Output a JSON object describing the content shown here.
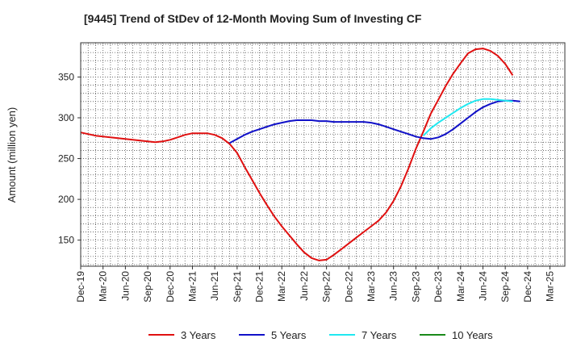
{
  "chart_data": {
    "type": "line",
    "title": "[9445]  Trend of StDev of 12-Month Moving Sum of Investing CF",
    "xlabel": "",
    "ylabel": "Amount (million yen)",
    "ylim": [
      118,
      392
    ],
    "yticks": [
      150,
      200,
      250,
      300,
      350
    ],
    "xticks": [
      "Dec-19",
      "Mar-20",
      "Jun-20",
      "Sep-20",
      "Dec-20",
      "Mar-21",
      "Jun-21",
      "Sep-21",
      "Dec-21",
      "Mar-22",
      "Jun-22",
      "Sep-22",
      "Dec-22",
      "Mar-23",
      "Jun-23",
      "Sep-23",
      "Dec-23",
      "Mar-24",
      "Jun-24",
      "Sep-24",
      "Dec-24",
      "Mar-25"
    ],
    "grid": true,
    "legend_position": "bottom",
    "series": [
      {
        "name": "3 Years",
        "color": "#e01010",
        "points": [
          [
            "Dec-19",
            282
          ],
          [
            "Jan-20",
            280
          ],
          [
            "Feb-20",
            278
          ],
          [
            "Mar-20",
            277
          ],
          [
            "Apr-20",
            276
          ],
          [
            "May-20",
            275
          ],
          [
            "Jun-20",
            274
          ],
          [
            "Jul-20",
            273
          ],
          [
            "Aug-20",
            272
          ],
          [
            "Sep-20",
            271
          ],
          [
            "Oct-20",
            270
          ],
          [
            "Nov-20",
            271
          ],
          [
            "Dec-20",
            273
          ],
          [
            "Jan-21",
            276
          ],
          [
            "Feb-21",
            279
          ],
          [
            "Mar-21",
            281
          ],
          [
            "Apr-21",
            281
          ],
          [
            "May-21",
            281
          ],
          [
            "Jun-21",
            279
          ],
          [
            "Jul-21",
            275
          ],
          [
            "Aug-21",
            268
          ],
          [
            "Sep-21",
            257
          ],
          [
            "Oct-21",
            240
          ],
          [
            "Nov-21",
            224
          ],
          [
            "Dec-21",
            208
          ],
          [
            "Jan-22",
            193
          ],
          [
            "Feb-22",
            179
          ],
          [
            "Mar-22",
            167
          ],
          [
            "Apr-22",
            156
          ],
          [
            "May-22",
            145
          ],
          [
            "Jun-22",
            135
          ],
          [
            "Jul-22",
            128
          ],
          [
            "Aug-22",
            125
          ],
          [
            "Sep-22",
            126
          ],
          [
            "Oct-22",
            132
          ],
          [
            "Nov-22",
            139
          ],
          [
            "Dec-22",
            146
          ],
          [
            "Jan-23",
            153
          ],
          [
            "Feb-23",
            160
          ],
          [
            "Mar-23",
            167
          ],
          [
            "Apr-23",
            174
          ],
          [
            "May-23",
            184
          ],
          [
            "Jun-23",
            198
          ],
          [
            "Jul-23",
            216
          ],
          [
            "Aug-23",
            238
          ],
          [
            "Sep-23",
            262
          ],
          [
            "Oct-23",
            283
          ],
          [
            "Nov-23",
            305
          ],
          [
            "Dec-23",
            322
          ],
          [
            "Jan-24",
            339
          ],
          [
            "Feb-24",
            354
          ],
          [
            "Mar-24",
            367
          ],
          [
            "Apr-24",
            379
          ],
          [
            "May-24",
            384
          ],
          [
            "Jun-24",
            385
          ],
          [
            "Jul-24",
            382
          ],
          [
            "Aug-24",
            376
          ],
          [
            "Sep-24",
            366
          ],
          [
            "Oct-24",
            352
          ]
        ]
      },
      {
        "name": "5 Years",
        "color": "#1010c8",
        "points": [
          [
            "Aug-21",
            269
          ],
          [
            "Sep-21",
            274
          ],
          [
            "Oct-21",
            279
          ],
          [
            "Nov-21",
            283
          ],
          [
            "Dec-21",
            286
          ],
          [
            "Jan-22",
            289
          ],
          [
            "Feb-22",
            292
          ],
          [
            "Mar-22",
            294
          ],
          [
            "Apr-22",
            296
          ],
          [
            "May-22",
            297
          ],
          [
            "Jun-22",
            297
          ],
          [
            "Jul-22",
            297
          ],
          [
            "Aug-22",
            296
          ],
          [
            "Sep-22",
            296
          ],
          [
            "Oct-22",
            295
          ],
          [
            "Nov-22",
            295
          ],
          [
            "Dec-22",
            295
          ],
          [
            "Jan-23",
            295
          ],
          [
            "Feb-23",
            295
          ],
          [
            "Mar-23",
            294
          ],
          [
            "Apr-23",
            292
          ],
          [
            "May-23",
            289
          ],
          [
            "Jun-23",
            286
          ],
          [
            "Jul-23",
            283
          ],
          [
            "Aug-23",
            280
          ],
          [
            "Sep-23",
            277
          ],
          [
            "Oct-23",
            275
          ],
          [
            "Nov-23",
            274
          ],
          [
            "Dec-23",
            276
          ],
          [
            "Jan-24",
            280
          ],
          [
            "Feb-24",
            286
          ],
          [
            "Mar-24",
            293
          ],
          [
            "Apr-24",
            300
          ],
          [
            "May-24",
            307
          ],
          [
            "Jun-24",
            313
          ],
          [
            "Jul-24",
            317
          ],
          [
            "Aug-24",
            320
          ],
          [
            "Sep-24",
            321
          ],
          [
            "Oct-24",
            321
          ],
          [
            "Nov-24",
            320
          ]
        ]
      },
      {
        "name": "7 Years",
        "color": "#20e8f0",
        "points": [
          [
            "Oct-23",
            278
          ],
          [
            "Nov-23",
            287
          ],
          [
            "Dec-23",
            294
          ],
          [
            "Jan-24",
            300
          ],
          [
            "Feb-24",
            306
          ],
          [
            "Mar-24",
            312
          ],
          [
            "Apr-24",
            317
          ],
          [
            "May-24",
            321
          ],
          [
            "Jun-24",
            323
          ],
          [
            "Jul-24",
            323
          ],
          [
            "Aug-24",
            322
          ],
          [
            "Sep-24",
            321
          ],
          [
            "Oct-24",
            320
          ]
        ]
      },
      {
        "name": "10 Years",
        "color": "#1a8a1a",
        "points": []
      }
    ]
  }
}
